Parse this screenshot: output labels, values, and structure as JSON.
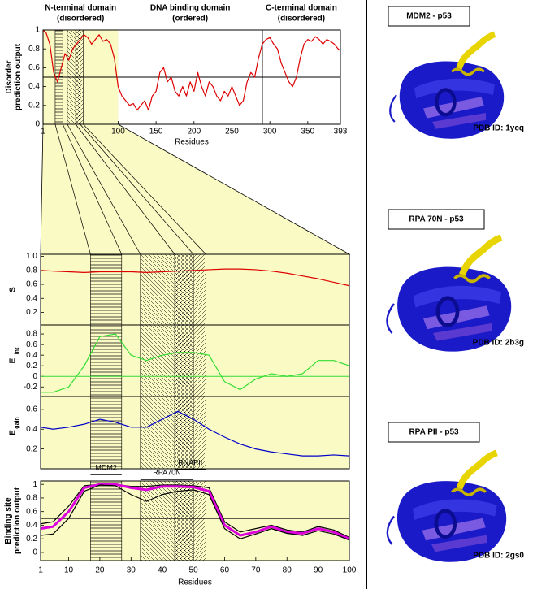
{
  "chart_data": [
    {
      "type": "line",
      "annotations": [
        [
          "N-terminal domain",
          "(disordered)"
        ],
        [
          "DNA binding domain",
          "(ordered)"
        ],
        [
          "C-terminal domain",
          "(disordered)"
        ]
      ],
      "ylabel": [
        "Disorder",
        "prediction output"
      ],
      "xlabel": "Residues",
      "xlim": [
        1,
        393
      ],
      "xticks": [
        1,
        100,
        150,
        200,
        250,
        300,
        350,
        393
      ],
      "ylim": [
        0,
        1
      ],
      "yticks": [
        0,
        0.2,
        0.4,
        0.6,
        0.8,
        1
      ],
      "zoom": [
        1,
        100
      ],
      "vline": 290,
      "hline": 0.5,
      "x": [
        1,
        5,
        10,
        15,
        20,
        25,
        30,
        35,
        40,
        45,
        50,
        55,
        60,
        65,
        70,
        75,
        80,
        85,
        90,
        95,
        100,
        105,
        110,
        115,
        120,
        125,
        130,
        135,
        140,
        145,
        150,
        155,
        160,
        165,
        170,
        175,
        180,
        185,
        190,
        195,
        200,
        205,
        210,
        215,
        220,
        225,
        230,
        235,
        240,
        245,
        250,
        255,
        260,
        265,
        270,
        275,
        280,
        285,
        290,
        295,
        300,
        305,
        310,
        315,
        320,
        325,
        330,
        335,
        340,
        345,
        350,
        355,
        360,
        365,
        370,
        375,
        380,
        385,
        390,
        393
      ],
      "series": [
        {
          "color": "#dd0000",
          "values": [
            1.0,
            0.97,
            0.85,
            0.55,
            0.45,
            0.6,
            0.75,
            0.68,
            0.8,
            0.85,
            0.9,
            0.95,
            0.92,
            0.85,
            0.9,
            0.95,
            0.88,
            0.9,
            0.85,
            0.7,
            0.4,
            0.3,
            0.25,
            0.2,
            0.22,
            0.15,
            0.2,
            0.25,
            0.15,
            0.3,
            0.35,
            0.55,
            0.6,
            0.45,
            0.5,
            0.35,
            0.3,
            0.4,
            0.3,
            0.45,
            0.35,
            0.55,
            0.4,
            0.3,
            0.45,
            0.4,
            0.3,
            0.25,
            0.35,
            0.3,
            0.4,
            0.3,
            0.2,
            0.25,
            0.45,
            0.55,
            0.5,
            0.7,
            0.85,
            0.9,
            0.92,
            0.85,
            0.8,
            0.65,
            0.55,
            0.45,
            0.4,
            0.5,
            0.7,
            0.85,
            0.9,
            0.88,
            0.93,
            0.9,
            0.85,
            0.9,
            0.88,
            0.85,
            0.8,
            0.78
          ]
        }
      ]
    },
    {
      "type": "line",
      "ylabel": "S",
      "xlim": [
        1,
        100
      ],
      "ylim": [
        0.02,
        1.03
      ],
      "yticks": [
        {
          "value": 1,
          "label": "1.0"
        },
        0.8,
        0.6,
        0.4,
        0.2
      ],
      "x": [
        1,
        5,
        10,
        15,
        20,
        25,
        30,
        35,
        40,
        45,
        50,
        55,
        60,
        65,
        70,
        75,
        80,
        85,
        90,
        95,
        100
      ],
      "series": [
        {
          "color": "#dd0000",
          "values": [
            0.8,
            0.79,
            0.78,
            0.77,
            0.78,
            0.78,
            0.78,
            0.77,
            0.78,
            0.79,
            0.8,
            0.81,
            0.82,
            0.82,
            0.81,
            0.79,
            0.76,
            0.72,
            0.68,
            0.63,
            0.58
          ]
        }
      ]
    },
    {
      "type": "line",
      "ylabel": "E",
      "ylabel_sub": "int",
      "xlim": [
        1,
        100
      ],
      "ylim": [
        -0.38,
        0.97
      ],
      "yticks": [
        0.8,
        0.6,
        0.4,
        0.2,
        0,
        -0.2
      ],
      "hline": 0,
      "hline_color": "#33dd33",
      "x": [
        1,
        5,
        10,
        15,
        20,
        25,
        30,
        35,
        40,
        45,
        50,
        55,
        60,
        65,
        70,
        75,
        80,
        85,
        90,
        95,
        100
      ],
      "series": [
        {
          "color": "#33dd33",
          "values": [
            -0.3,
            -0.3,
            -0.2,
            0.2,
            0.75,
            0.8,
            0.4,
            0.3,
            0.4,
            0.45,
            0.45,
            0.4,
            -0.1,
            -0.25,
            -0.05,
            0.05,
            0.0,
            0.05,
            0.3,
            0.3,
            0.2
          ]
        }
      ]
    },
    {
      "type": "line",
      "ylabel": "E",
      "ylabel_sub": "gain",
      "xlim": [
        1,
        100
      ],
      "ylim": [
        0,
        0.73
      ],
      "yticks": [
        0.6,
        0.4,
        0.2
      ],
      "x": [
        1,
        5,
        10,
        15,
        20,
        25,
        30,
        35,
        40,
        45,
        50,
        55,
        60,
        65,
        70,
        75,
        80,
        85,
        90,
        95,
        100
      ],
      "series": [
        {
          "color": "#0000cc",
          "values": [
            0.42,
            0.4,
            0.42,
            0.45,
            0.5,
            0.47,
            0.42,
            0.42,
            0.5,
            0.58,
            0.5,
            0.4,
            0.32,
            0.25,
            0.2,
            0.17,
            0.15,
            0.13,
            0.13,
            0.14,
            0.13
          ]
        }
      ]
    },
    {
      "type": "line",
      "ylabel": [
        "Binding site",
        "prediction output"
      ],
      "xlabel": "Residues",
      "xlim": [
        1,
        100
      ],
      "xticks": [
        1,
        10,
        20,
        30,
        40,
        50,
        60,
        70,
        80,
        90,
        100
      ],
      "ylim": [
        -0.12,
        1.05
      ],
      "yticks": [
        0,
        0.2,
        0.4,
        0.6,
        0.8,
        1
      ],
      "hline": 0.5,
      "regions": [
        {
          "name": "MDM2",
          "start": 17,
          "end": 27
        },
        {
          "name": "RPA70N",
          "start": 33,
          "end": 50
        },
        {
          "name": "RNAPII",
          "start": 44,
          "end": 54
        }
      ],
      "x": [
        1,
        5,
        10,
        15,
        20,
        25,
        30,
        35,
        40,
        45,
        50,
        55,
        60,
        65,
        70,
        75,
        80,
        85,
        90,
        95,
        100
      ],
      "series": [
        {
          "color": "#000000",
          "values": [
            0.42,
            0.45,
            0.68,
            0.98,
            1.0,
            1.0,
            0.97,
            0.97,
            0.99,
            0.99,
            0.98,
            0.95,
            0.45,
            0.3,
            0.35,
            0.4,
            0.33,
            0.3,
            0.38,
            0.33,
            0.22
          ]
        },
        {
          "color": "#dd00dd",
          "values": [
            0.35,
            0.38,
            0.6,
            0.95,
            1.0,
            1.0,
            0.95,
            0.92,
            0.97,
            0.97,
            0.96,
            0.9,
            0.4,
            0.25,
            0.3,
            0.38,
            0.3,
            0.28,
            0.35,
            0.3,
            0.2
          ]
        },
        {
          "color": "#000000",
          "values": [
            0.25,
            0.27,
            0.5,
            0.9,
            0.99,
            0.98,
            0.85,
            0.75,
            0.85,
            0.9,
            0.92,
            0.85,
            0.35,
            0.2,
            0.27,
            0.35,
            0.28,
            0.25,
            0.32,
            0.27,
            0.18
          ]
        }
      ]
    }
  ],
  "structures": [
    {
      "title": "MDM2 - p53",
      "pdb": "PDB ID: 1ycq"
    },
    {
      "title": "RPA 70N - p53",
      "pdb": "PDB ID: 2b3g"
    },
    {
      "title": "RPA PII - p53",
      "pdb": "PDB ID: 2gs0"
    }
  ]
}
